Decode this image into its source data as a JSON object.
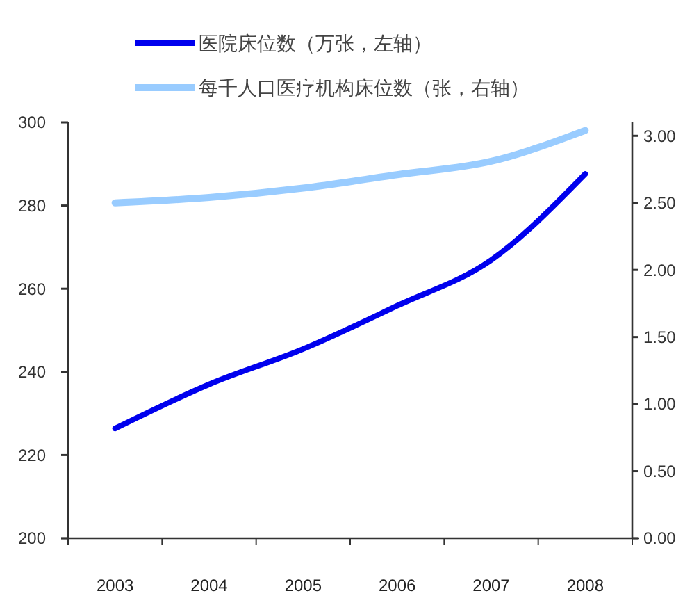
{
  "chart_data": {
    "type": "line",
    "categories": [
      "2003",
      "2004",
      "2005",
      "2006",
      "2007",
      "2008"
    ],
    "series": [
      {
        "name": "医院床位数（万张，左轴）",
        "color": "#0000ee",
        "values": [
          226.4,
          237,
          245.5,
          255.9,
          266.9,
          287.6
        ]
      },
      {
        "name": "每千人口医疗机构床位数（张，右轴）",
        "color": "#99ccff",
        "values": [
          2.5,
          2.54,
          2.61,
          2.71,
          2.81,
          3.04
        ],
        "axis": "y2"
      }
    ],
    "ylim": [
      200,
      300
    ],
    "yticks": [
      200,
      220,
      240,
      260,
      280,
      300
    ],
    "y2lim": [
      0,
      3.1
    ],
    "y2ticks": [
      {
        "value": 0,
        "label": "0.00"
      },
      {
        "value": 0.5,
        "label": "0.50"
      },
      {
        "value": 1,
        "label": "1.00"
      },
      {
        "value": 1.5,
        "label": "1.50"
      },
      {
        "value": 2,
        "label": "2.00"
      },
      {
        "value": 2.5,
        "label": "2.50"
      },
      {
        "value": 3,
        "label": "3.00"
      }
    ],
    "legend": "top"
  }
}
